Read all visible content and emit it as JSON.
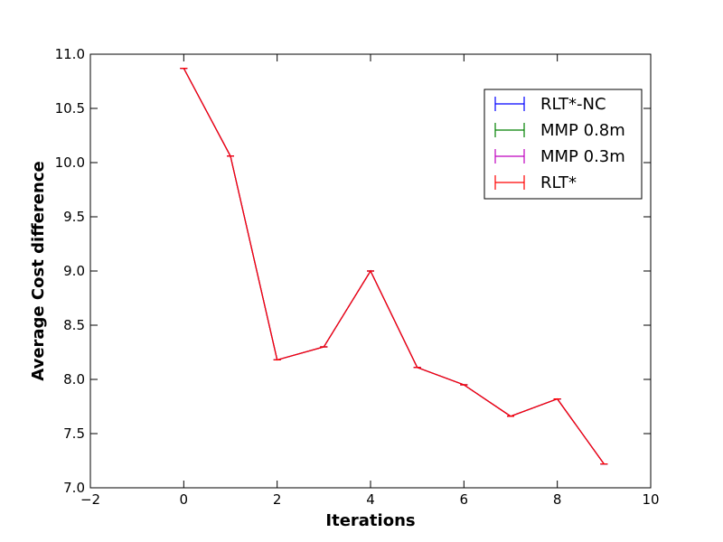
{
  "chart_data": {
    "type": "line",
    "title": "",
    "xlabel": "Iterations",
    "ylabel": "Average Cost difference",
    "xlim": [
      -2,
      10
    ],
    "ylim": [
      7.0,
      11.0
    ],
    "xticks": [
      -2,
      0,
      2,
      4,
      6,
      8,
      10
    ],
    "xtick_labels": [
      "−2",
      "0",
      "2",
      "4",
      "6",
      "8",
      "10"
    ],
    "yticks": [
      7.0,
      7.5,
      8.0,
      8.5,
      9.0,
      9.5,
      10.0,
      10.5,
      11.0
    ],
    "ytick_labels": [
      "7.0",
      "7.5",
      "8.0",
      "8.5",
      "9.0",
      "9.5",
      "10.0",
      "10.5",
      "11.0"
    ],
    "grid": false,
    "legend_position": "top-right",
    "x": [
      0,
      1,
      2,
      3,
      4,
      5,
      6,
      7,
      8,
      9
    ],
    "series": [
      {
        "name": "RLT*-NC",
        "color": "#0000ff",
        "values": [
          10.87,
          10.06,
          8.18,
          8.3,
          9.0,
          8.11,
          7.95,
          7.66,
          7.82,
          7.22
        ]
      },
      {
        "name": "MMP 0.8m",
        "color": "#008000",
        "values": [
          10.87,
          10.06,
          8.18,
          8.3,
          9.0,
          8.11,
          7.95,
          7.66,
          7.82,
          7.22
        ]
      },
      {
        "name": "MMP 0.3m",
        "color": "#bf00bf",
        "values": [
          10.87,
          10.06,
          8.18,
          8.3,
          9.0,
          8.11,
          7.95,
          7.66,
          7.82,
          7.22
        ]
      },
      {
        "name": "RLT*",
        "color": "#ff0000",
        "values": [
          10.87,
          10.06,
          8.18,
          8.3,
          9.0,
          8.11,
          7.95,
          7.66,
          7.82,
          7.22
        ]
      }
    ]
  }
}
